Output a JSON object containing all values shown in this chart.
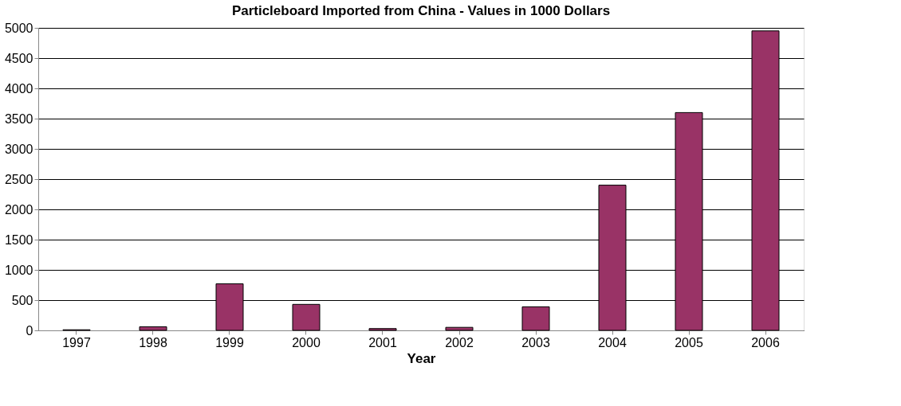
{
  "chart_data": {
    "type": "bar",
    "title": "Particleboard Imported from China - Values in 1000 Dollars",
    "xlabel": "Year",
    "categories": [
      "1997",
      "1998",
      "1999",
      "2000",
      "2001",
      "2002",
      "2003",
      "2004",
      "2005",
      "2006"
    ],
    "series": [
      {
        "color": "#993366",
        "values": [
          10,
          60,
          770,
          430,
          30,
          50,
          390,
          2400,
          3600,
          4950
        ]
      }
    ],
    "ylim": [
      0,
      5000
    ],
    "yticks": [
      0,
      500,
      1000,
      1500,
      2000,
      2500,
      3000,
      3500,
      4000,
      4500,
      5000
    ],
    "grid": "y"
  }
}
